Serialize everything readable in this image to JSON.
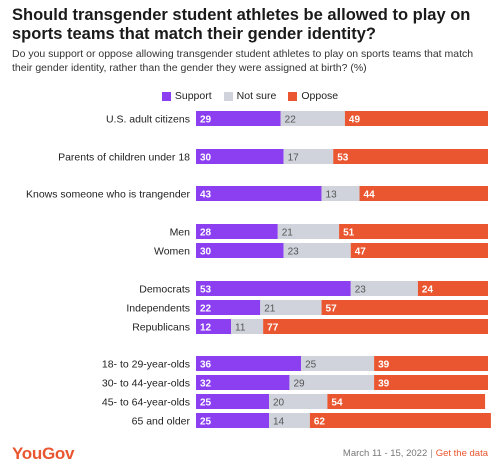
{
  "header": {
    "title": "Should transgender student athletes be allowed to play on sports teams that match their gender identity?",
    "subtitle": "Do you support or oppose allowing transgender student athletes to play on sports teams that match their gender identity, rather than the gender they were assigned at birth? (%)"
  },
  "legend": {
    "support": "Support",
    "not_sure": "Not sure",
    "oppose": "Oppose"
  },
  "colors": {
    "support": "#8b3ff0",
    "not_sure": "#d0d3dc",
    "oppose": "#e9562f"
  },
  "footer": {
    "logo": "YouGov",
    "date": "March 11 - 15, 2022",
    "link": "Get the data"
  },
  "chart_data": {
    "type": "bar",
    "orientation": "horizontal",
    "stacked": true,
    "categories": [
      "U.S. adult citizens",
      "Parents of children under 18",
      "Knows someone who is trangender",
      "Men",
      "Women",
      "Democrats",
      "Independents",
      "Republicans",
      "18- to 29-year-olds",
      "30- to 44-year-olds",
      "45- to 64-year-olds",
      "65 and older"
    ],
    "series": [
      {
        "name": "Support",
        "values": [
          29,
          30,
          43,
          28,
          30,
          53,
          22,
          12,
          36,
          32,
          25,
          25
        ]
      },
      {
        "name": "Not sure",
        "values": [
          22,
          17,
          13,
          21,
          23,
          23,
          21,
          11,
          25,
          29,
          20,
          14
        ]
      },
      {
        "name": "Oppose",
        "values": [
          49,
          53,
          44,
          51,
          47,
          24,
          57,
          77,
          39,
          39,
          54,
          62
        ]
      }
    ],
    "xlim": [
      0,
      100
    ],
    "legend_position": "top",
    "grid": false
  }
}
